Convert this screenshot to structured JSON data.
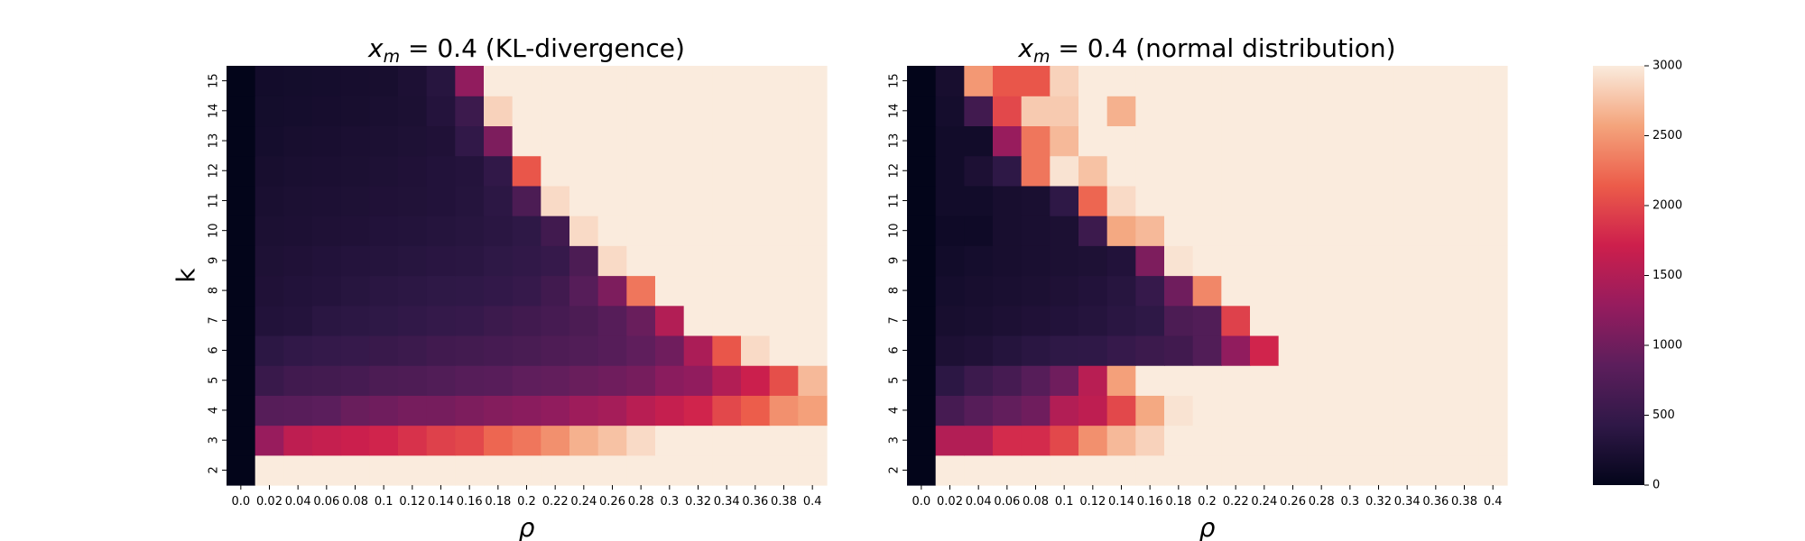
{
  "chart_data": [
    {
      "type": "heatmap",
      "title_var": "x",
      "title_sub": "m",
      "title_rest": " = 0.4  (KL-divergence)",
      "xlabel": "ρ",
      "ylabel": "k",
      "x": [
        "0.0",
        "0.02",
        "0.04",
        "0.06",
        "0.08",
        "0.1",
        "0.12",
        "0.14",
        "0.16",
        "0.18",
        "0.2",
        "0.22",
        "0.24",
        "0.26",
        "0.28",
        "0.3",
        "0.32",
        "0.34",
        "0.36",
        "0.38",
        "0.4"
      ],
      "y": [
        "2",
        "3",
        "4",
        "5",
        "6",
        "7",
        "8",
        "9",
        "10",
        "11",
        "12",
        "13",
        "14",
        "15"
      ],
      "values": [
        [
          0,
          3000,
          3000,
          3000,
          3000,
          3000,
          3000,
          3000,
          3000,
          3000,
          3000,
          3000,
          3000,
          3000,
          3000,
          3000,
          3000,
          3000,
          3000,
          3000,
          3000
        ],
        [
          0,
          1300,
          1600,
          1650,
          1700,
          1750,
          1850,
          1950,
          2000,
          2200,
          2300,
          2450,
          2650,
          2750,
          2900,
          3000,
          3000,
          3000,
          3000,
          3000,
          3000
        ],
        [
          0,
          800,
          820,
          850,
          950,
          1000,
          1050,
          1050,
          1100,
          1150,
          1200,
          1250,
          1350,
          1400,
          1550,
          1650,
          1750,
          2000,
          2150,
          2450,
          2550
        ],
        [
          0,
          520,
          600,
          620,
          650,
          700,
          720,
          750,
          800,
          820,
          880,
          900,
          950,
          1000,
          1050,
          1200,
          1250,
          1500,
          1700,
          2050,
          2700
        ],
        [
          0,
          400,
          450,
          480,
          500,
          520,
          550,
          600,
          620,
          650,
          680,
          720,
          750,
          800,
          880,
          1000,
          1450,
          2100,
          2900,
          3000,
          3000
        ],
        [
          0,
          300,
          320,
          380,
          400,
          420,
          450,
          480,
          500,
          550,
          600,
          650,
          700,
          800,
          950,
          1500,
          3000,
          3000,
          3000,
          3000,
          3000
        ],
        [
          0,
          280,
          300,
          320,
          350,
          380,
          400,
          420,
          430,
          460,
          500,
          600,
          800,
          1100,
          2300,
          3000,
          3000,
          3000,
          3000,
          3000,
          3000
        ],
        [
          0,
          260,
          280,
          300,
          320,
          330,
          350,
          370,
          380,
          420,
          450,
          500,
          700,
          2900,
          3000,
          3000,
          3000,
          3000,
          3000,
          3000,
          3000
        ],
        [
          0,
          240,
          250,
          270,
          280,
          300,
          310,
          330,
          350,
          380,
          420,
          600,
          2900,
          3000,
          3000,
          3000,
          3000,
          3000,
          3000,
          3000,
          3000
        ],
        [
          0,
          220,
          240,
          250,
          260,
          280,
          290,
          300,
          330,
          400,
          700,
          2900,
          3000,
          3000,
          3000,
          3000,
          3000,
          3000,
          3000,
          3000,
          3000
        ],
        [
          0,
          200,
          220,
          230,
          240,
          260,
          280,
          300,
          320,
          450,
          2100,
          3000,
          3000,
          3000,
          3000,
          3000,
          3000,
          3000,
          3000,
          3000,
          3000
        ],
        [
          0,
          180,
          200,
          210,
          230,
          240,
          260,
          280,
          450,
          1100,
          3000,
          3000,
          3000,
          3000,
          3000,
          3000,
          3000,
          3000,
          3000,
          3000,
          3000
        ],
        [
          0,
          170,
          180,
          190,
          200,
          220,
          240,
          320,
          550,
          2850,
          3000,
          3000,
          3000,
          3000,
          3000,
          3000,
          3000,
          3000,
          3000,
          3000,
          3000
        ],
        [
          0,
          160,
          170,
          180,
          190,
          200,
          250,
          350,
          1250,
          3000,
          3000,
          3000,
          3000,
          3000,
          3000,
          3000,
          3000,
          3000,
          3000,
          3000,
          3000
        ]
      ]
    },
    {
      "type": "heatmap",
      "title_var": "x",
      "title_sub": "m",
      "title_rest": " = 0.4  (normal distribution)",
      "xlabel": "ρ",
      "x": [
        "0.0",
        "0.02",
        "0.04",
        "0.06",
        "0.08",
        "0.1",
        "0.12",
        "0.14",
        "0.16",
        "0.18",
        "0.2",
        "0.22",
        "0.24",
        "0.26",
        "0.28",
        "0.3",
        "0.32",
        "0.34",
        "0.36",
        "0.38",
        "0.4"
      ],
      "y": [
        "2",
        "3",
        "4",
        "5",
        "6",
        "7",
        "8",
        "9",
        "10",
        "11",
        "12",
        "13",
        "14",
        "15"
      ],
      "values": [
        [
          0,
          3000,
          3000,
          3000,
          3000,
          3000,
          3000,
          3000,
          3000,
          3000,
          3000,
          3000,
          3000,
          3000,
          3000,
          3000,
          3000,
          3000,
          3000,
          3000,
          3000
        ],
        [
          0,
          1500,
          1500,
          1800,
          1800,
          2000,
          2450,
          2700,
          2850,
          3000,
          3000,
          3000,
          3000,
          3000,
          3000,
          3000,
          3000,
          3000,
          3000,
          3000,
          3000
        ],
        [
          0,
          650,
          800,
          900,
          1000,
          1500,
          1600,
          2000,
          2600,
          2950,
          3000,
          3000,
          3000,
          3000,
          3000,
          3000,
          3000,
          3000,
          3000,
          3000,
          3000
        ],
        [
          0,
          400,
          550,
          650,
          800,
          1000,
          1550,
          2550,
          3000,
          3000,
          3000,
          3000,
          3000,
          3000,
          3000,
          3000,
          3000,
          3000,
          3000,
          3000,
          3000
        ],
        [
          0,
          250,
          280,
          330,
          380,
          420,
          430,
          500,
          550,
          600,
          750,
          1250,
          1750,
          3000,
          3000,
          3000,
          3000,
          3000,
          3000,
          3000,
          3000
        ],
        [
          0,
          200,
          220,
          250,
          280,
          300,
          330,
          380,
          420,
          700,
          750,
          1950,
          3000,
          3000,
          3000,
          3000,
          3000,
          3000,
          3000,
          3000,
          3000
        ],
        [
          0,
          180,
          200,
          220,
          240,
          270,
          300,
          350,
          500,
          1000,
          2400,
          3000,
          3000,
          3000,
          3000,
          3000,
          3000,
          3000,
          3000,
          3000,
          3000
        ],
        [
          0,
          150,
          180,
          200,
          220,
          240,
          260,
          300,
          1100,
          2950,
          3000,
          3000,
          3000,
          3000,
          3000,
          3000,
          3000,
          3000,
          3000,
          3000,
          3000
        ],
        [
          0,
          120,
          120,
          200,
          220,
          240,
          550,
          2600,
          2700,
          3000,
          3000,
          3000,
          3000,
          3000,
          3000,
          3000,
          3000,
          3000,
          3000,
          3000,
          3000
        ],
        [
          0,
          150,
          150,
          200,
          220,
          420,
          2200,
          2900,
          3000,
          3000,
          3000,
          3000,
          3000,
          3000,
          3000,
          3000,
          3000,
          3000,
          3000,
          3000,
          3000
        ],
        [
          0,
          150,
          250,
          420,
          2300,
          2950,
          2750,
          3000,
          3000,
          3000,
          3000,
          3000,
          3000,
          3000,
          3000,
          3000,
          3000,
          3000,
          3000,
          3000,
          3000
        ],
        [
          0,
          150,
          150,
          1300,
          2300,
          2700,
          3000,
          3000,
          3000,
          3000,
          3000,
          3000,
          3000,
          3000,
          3000,
          3000,
          3000,
          3000,
          3000,
          3000,
          3000
        ],
        [
          0,
          180,
          600,
          2000,
          2800,
          2800,
          3000,
          2650,
          3000,
          3000,
          3000,
          3000,
          3000,
          3000,
          3000,
          3000,
          3000,
          3000,
          3000,
          3000,
          3000
        ],
        [
          0,
          200,
          2500,
          2100,
          2100,
          2850,
          3000,
          3000,
          3000,
          3000,
          3000,
          3000,
          3000,
          3000,
          3000,
          3000,
          3000,
          3000,
          3000,
          3000,
          3000
        ]
      ]
    }
  ],
  "colorbar": {
    "ticks": [
      0,
      500,
      1000,
      1500,
      2000,
      2500,
      3000
    ],
    "vmin": 0,
    "vmax": 3000
  },
  "colormap_stops": [
    "#03051a",
    "#2f1847",
    "#5c1e5c",
    "#961c5e",
    "#cd1f4c",
    "#ec5c4a",
    "#f4a47c",
    "#faebdd"
  ]
}
